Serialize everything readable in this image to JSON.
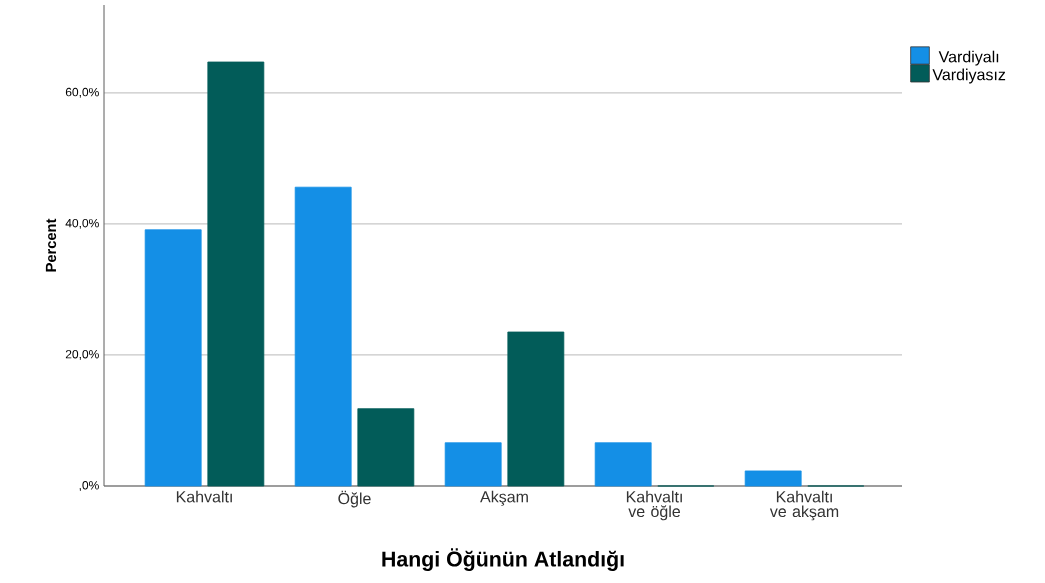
{
  "chart_data": {
    "type": "bar",
    "xlabel": "Hangi Öğünün Atlandığı",
    "ylabel": "Percent",
    "categories": [
      "Kahvaltı",
      "Öğle",
      "Akşam",
      "Kahvaltı ve öğle",
      "Kahvaltı ve akşam"
    ],
    "series": [
      {
        "name": "Vardiyalı",
        "color": "#148fe6",
        "values": [
          39.1,
          45.6,
          6.6,
          6.6,
          2.3
        ]
      },
      {
        "name": "Vardiyasız",
        "color": "#025c59",
        "values": [
          64.7,
          11.8,
          23.5,
          0,
          0
        ]
      }
    ],
    "ylim": [
      0,
      73.4
    ],
    "yticks": [
      {
        "value": 0,
        "label": ",0%"
      },
      {
        "value": 20,
        "label": "20,0%"
      },
      {
        "value": 40,
        "label": "40,0%"
      },
      {
        "value": 60,
        "label": "60,0%"
      }
    ],
    "grid": "y",
    "legend": "top right"
  }
}
